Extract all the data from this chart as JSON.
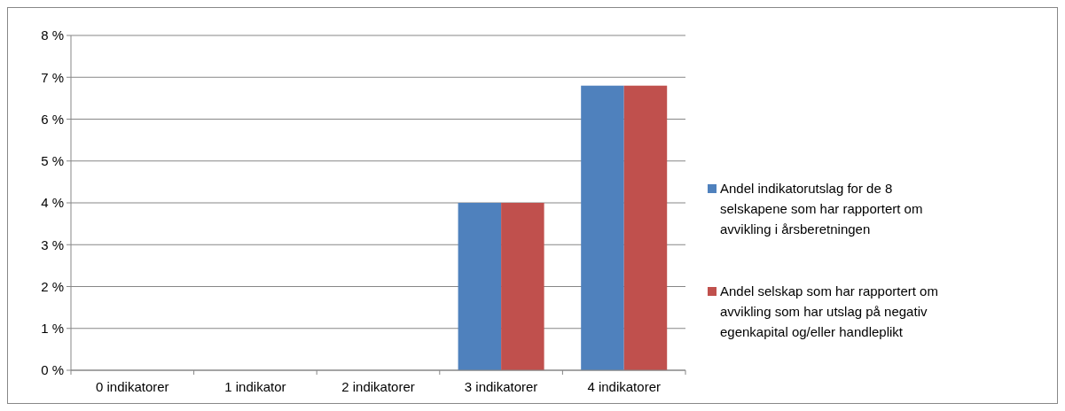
{
  "chart_data": {
    "type": "bar",
    "categories": [
      "0 indikatorer",
      "1 indikator",
      "2 indikatorer",
      "3 indikatorer",
      "4 indikatorer"
    ],
    "series": [
      {
        "name": "Andel indikatorutslag  for de 8 selskapene som har rapportert om avvikling i årsberetningen",
        "color": "#4f81bd",
        "values": [
          0,
          0,
          0,
          4.0,
          6.8
        ]
      },
      {
        "name": "Andel selskap som har rapportert om avvikling som har utslag på negativ egenkapital og/eller handleplikt",
        "color": "#c0504d",
        "values": [
          0,
          0,
          0,
          4.0,
          6.8
        ]
      }
    ],
    "ylim": [
      0,
      8
    ],
    "yticks": [
      {
        "value": 0,
        "label": "0 %"
      },
      {
        "value": 1,
        "label": "1 %"
      },
      {
        "value": 2,
        "label": "2 %"
      },
      {
        "value": 3,
        "label": "3 %"
      },
      {
        "value": 4,
        "label": "4 %"
      },
      {
        "value": 5,
        "label": "5 %"
      },
      {
        "value": 6,
        "label": "6 %"
      },
      {
        "value": 7,
        "label": "7 %"
      },
      {
        "value": 8,
        "label": "8 %"
      }
    ],
    "grid": "y",
    "legend": "right"
  }
}
